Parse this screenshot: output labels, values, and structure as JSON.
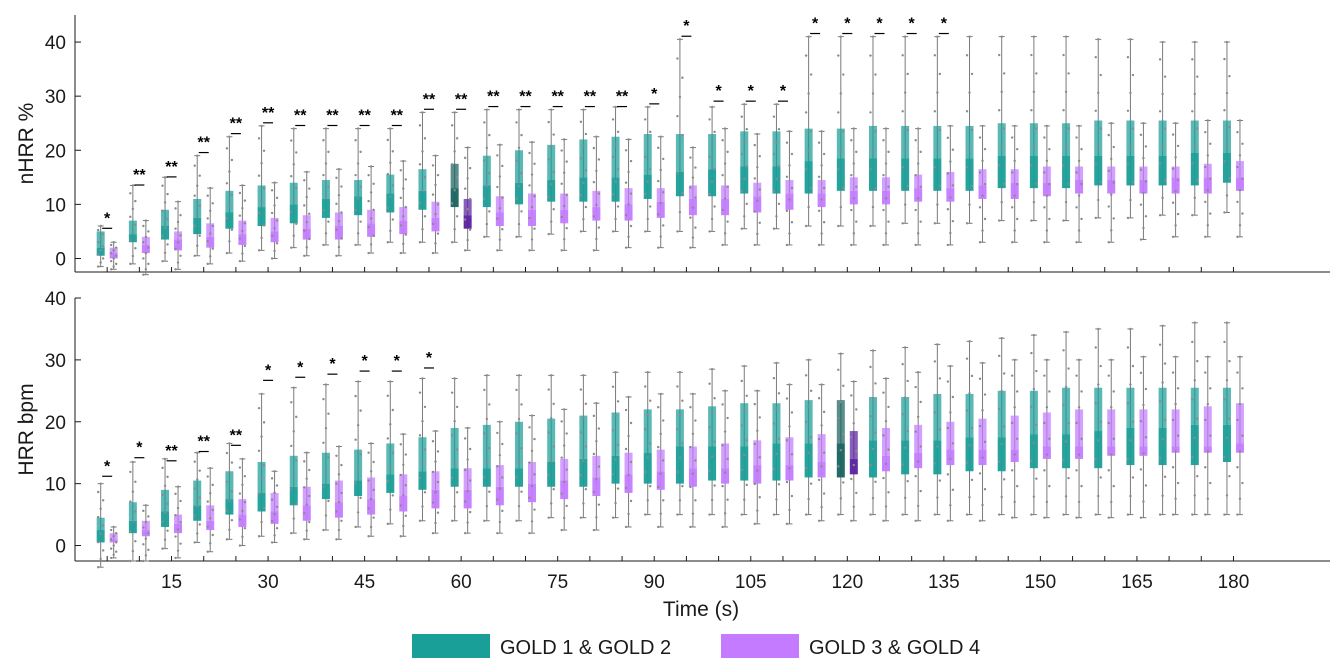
{
  "chart_data": [
    {
      "type": "box",
      "ylabel": "nHRR %",
      "ylim": [
        -2.5,
        45
      ],
      "yticks": [
        0,
        10,
        20,
        30,
        40
      ],
      "grid": false,
      "x": [
        5,
        10,
        15,
        20,
        25,
        30,
        35,
        40,
        45,
        50,
        55,
        60,
        65,
        70,
        75,
        80,
        85,
        90,
        95,
        100,
        105,
        110,
        115,
        120,
        125,
        130,
        135,
        140,
        145,
        150,
        155,
        160,
        165,
        170,
        175,
        180
      ],
      "series": [
        {
          "name": "GOLD 1 & GOLD 2",
          "color": "#1a9e98",
          "q1": [
            0.5,
            3,
            3.5,
            4.5,
            5.5,
            6,
            6.5,
            7.5,
            8,
            8.5,
            9,
            9.5,
            9.5,
            10,
            10.5,
            10.5,
            10.5,
            11,
            11.5,
            11.5,
            12,
            12,
            12,
            12.5,
            12.5,
            12.5,
            12.5,
            12.5,
            13,
            13,
            13,
            13.5,
            13.5,
            13.5,
            13.5,
            14
          ],
          "median": [
            2,
            4.5,
            6,
            7.5,
            8.5,
            9.5,
            10,
            11,
            11.5,
            12,
            12.5,
            13,
            13.5,
            14,
            14.5,
            15,
            15,
            15.5,
            16,
            16.5,
            17,
            17,
            18,
            18.5,
            18.5,
            18.5,
            18.5,
            18.5,
            19,
            19,
            19,
            19,
            19,
            19,
            19.5,
            19.5
          ],
          "q3": [
            5,
            7,
            9,
            11,
            12.5,
            13.5,
            14,
            14.5,
            14.5,
            15.5,
            16.5,
            17.5,
            19,
            20,
            21,
            22,
            22.5,
            23,
            23,
            23,
            23.5,
            23.5,
            24,
            24,
            24.5,
            24.5,
            24.5,
            24.5,
            25,
            25,
            25,
            25.5,
            25.5,
            25.5,
            25.5,
            25.5
          ],
          "whislo": [
            -1.5,
            -1,
            -0.5,
            0.5,
            1,
            1.5,
            2,
            2.5,
            2.5,
            3,
            3,
            3,
            4,
            4,
            4.5,
            5,
            5,
            5,
            5,
            5,
            5.5,
            5.5,
            6,
            6,
            6,
            6.5,
            6.5,
            6.5,
            7,
            7,
            7,
            7.5,
            7.5,
            8,
            8,
            8.5
          ],
          "whishi": [
            6,
            13.5,
            15,
            19,
            22.5,
            24.5,
            24,
            24,
            24,
            24,
            27,
            27,
            27.5,
            27.5,
            27.5,
            27.5,
            28,
            28,
            40.5,
            28,
            28.5,
            28.5,
            41,
            41,
            41,
            41,
            41,
            41,
            41,
            41,
            41,
            40.5,
            40.5,
            40,
            40,
            40
          ]
        },
        {
          "name": "GOLD 3 & GOLD 4",
          "color": "#c47bff",
          "q1": [
            0,
            1,
            1.5,
            2,
            2.5,
            3,
            3.5,
            3.5,
            4,
            4.5,
            5,
            5.5,
            6,
            6,
            6.5,
            7,
            7,
            7.5,
            8,
            8,
            8.5,
            9,
            9.5,
            10,
            10,
            10.5,
            10.5,
            11,
            11,
            11.5,
            12,
            12,
            12,
            12,
            12,
            12.5
          ],
          "median": [
            1,
            2.5,
            3.5,
            4,
            4.5,
            5,
            5.5,
            6,
            6.5,
            7,
            7.5,
            8,
            8.5,
            9,
            9,
            9.5,
            10,
            10.5,
            11,
            11,
            11.5,
            12,
            12,
            12.5,
            12.5,
            13,
            13,
            13.5,
            14,
            14,
            14.5,
            14.5,
            14.5,
            15,
            15,
            15
          ],
          "q3": [
            2,
            4,
            5,
            6.5,
            7,
            7.5,
            8,
            8.5,
            9,
            9.5,
            10.5,
            11,
            11.5,
            12,
            12,
            12.5,
            13,
            13,
            13.5,
            13.5,
            14,
            14.5,
            14.5,
            15,
            15,
            15.5,
            16,
            16.5,
            16.5,
            17,
            17,
            17,
            17,
            17,
            17.5,
            18
          ],
          "whislo": [
            -2,
            -3,
            -2,
            -1,
            -0.5,
            0,
            0.5,
            0.5,
            1,
            1,
            1,
            1.5,
            1.5,
            1.5,
            1.5,
            1.5,
            2,
            2,
            2,
            2.5,
            2.5,
            2.5,
            2.5,
            2.5,
            2.5,
            2.5,
            2.5,
            3,
            3,
            3,
            3,
            3,
            3.5,
            4,
            4,
            4
          ],
          "whishi": [
            3,
            7,
            10.5,
            13,
            13.5,
            14,
            16,
            16.5,
            17,
            18,
            19,
            20.5,
            21,
            21.5,
            22,
            22.5,
            22,
            22.5,
            20.5,
            24,
            23,
            23.5,
            23.5,
            24,
            24,
            24,
            24.5,
            24.5,
            24.5,
            24.5,
            24.5,
            25,
            25,
            25,
            25.5,
            25.5
          ]
        }
      ],
      "highlight_x": 60,
      "annotations": [
        {
          "x": 5,
          "y": 6.5,
          "text": "*"
        },
        {
          "x": 10,
          "y": 14.5,
          "text": "**"
        },
        {
          "x": 15,
          "y": 16,
          "text": "**"
        },
        {
          "x": 20,
          "y": 20.5,
          "text": "**"
        },
        {
          "x": 25,
          "y": 24,
          "text": "**"
        },
        {
          "x": 30,
          "y": 26,
          "text": "**"
        },
        {
          "x": 35,
          "y": 25.5,
          "text": "**"
        },
        {
          "x": 40,
          "y": 25.5,
          "text": "**"
        },
        {
          "x": 45,
          "y": 25.5,
          "text": "**"
        },
        {
          "x": 50,
          "y": 25.5,
          "text": "**"
        },
        {
          "x": 55,
          "y": 28.5,
          "text": "**"
        },
        {
          "x": 60,
          "y": 28.5,
          "text": "**"
        },
        {
          "x": 65,
          "y": 29,
          "text": "**"
        },
        {
          "x": 70,
          "y": 29,
          "text": "**"
        },
        {
          "x": 75,
          "y": 29,
          "text": "**"
        },
        {
          "x": 80,
          "y": 29,
          "text": "**"
        },
        {
          "x": 85,
          "y": 29,
          "text": "**"
        },
        {
          "x": 90,
          "y": 29.5,
          "text": "*"
        },
        {
          "x": 95,
          "y": 42,
          "text": "*"
        },
        {
          "x": 100,
          "y": 30,
          "text": "*"
        },
        {
          "x": 105,
          "y": 30,
          "text": "*"
        },
        {
          "x": 110,
          "y": 30,
          "text": "*"
        },
        {
          "x": 115,
          "y": 42.5,
          "text": "*"
        },
        {
          "x": 120,
          "y": 42.5,
          "text": "*"
        },
        {
          "x": 125,
          "y": 42.5,
          "text": "*"
        },
        {
          "x": 130,
          "y": 42.5,
          "text": "*"
        },
        {
          "x": 135,
          "y": 42.5,
          "text": "*"
        }
      ]
    },
    {
      "type": "box",
      "ylabel": "HRR bpm",
      "xlabel": "Time (s)",
      "ylim": [
        -2.5,
        40
      ],
      "yticks": [
        0,
        10,
        20,
        30,
        40
      ],
      "xticks": [
        15,
        30,
        45,
        60,
        75,
        90,
        105,
        120,
        135,
        150,
        165,
        180
      ],
      "grid": false,
      "x": [
        5,
        10,
        15,
        20,
        25,
        30,
        35,
        40,
        45,
        50,
        55,
        60,
        65,
        70,
        75,
        80,
        85,
        90,
        95,
        100,
        105,
        110,
        115,
        120,
        125,
        130,
        135,
        140,
        145,
        150,
        155,
        160,
        165,
        170,
        175,
        180
      ],
      "series": [
        {
          "name": "GOLD 1 & GOLD 2",
          "color": "#1a9e98",
          "q1": [
            0.5,
            2,
            3,
            4,
            5,
            5.5,
            6.5,
            7.5,
            8,
            8.5,
            9,
            9.5,
            9.5,
            9.5,
            9.5,
            9.5,
            10,
            10,
            10,
            10.5,
            10.5,
            10.5,
            11,
            11,
            11,
            11.5,
            11.5,
            12,
            12,
            12.5,
            12.5,
            12.5,
            13,
            13,
            13,
            13.5
          ],
          "median": [
            2.5,
            4,
            5.5,
            6.5,
            7.5,
            8.5,
            9.5,
            10,
            10.5,
            11.5,
            12,
            12.5,
            12.5,
            12.5,
            13.5,
            14,
            14.5,
            15,
            16,
            16,
            16,
            16.5,
            16.5,
            16.5,
            17,
            17,
            17,
            17.5,
            17.5,
            18,
            18,
            18.5,
            19,
            19,
            19.5,
            19.5
          ],
          "q3": [
            4.5,
            7,
            9,
            10.5,
            12,
            13.5,
            14.5,
            15,
            15.5,
            16.5,
            17.5,
            19,
            19.5,
            20,
            20.5,
            21,
            21.5,
            22,
            22,
            22.5,
            23,
            23,
            23.5,
            23.5,
            24,
            24,
            24.5,
            24.5,
            25,
            25,
            25.5,
            25.5,
            25.5,
            25.5,
            25.5,
            25.5
          ],
          "whislo": [
            -3.5,
            -2.5,
            -0.5,
            0.5,
            1,
            1.5,
            2,
            2.5,
            3,
            3.5,
            4,
            4,
            4,
            4,
            4.5,
            4.5,
            4.5,
            5,
            5,
            5,
            5,
            5,
            5,
            5,
            5,
            5,
            5,
            5,
            5,
            5,
            5,
            5,
            5,
            5,
            5,
            5
          ],
          "whishi": [
            10,
            13.5,
            14,
            15,
            16.5,
            24.5,
            25.5,
            26,
            26.5,
            26.5,
            27,
            27,
            27.5,
            27.5,
            27.5,
            27.5,
            28,
            28,
            28,
            28.5,
            29,
            29.5,
            30,
            31,
            31.5,
            32,
            32.5,
            33,
            33.5,
            34,
            34.5,
            35,
            35,
            35.5,
            36,
            36
          ]
        },
        {
          "name": "GOLD 3 & GOLD 4",
          "color": "#c47bff",
          "q1": [
            0.5,
            1.5,
            2,
            2.5,
            3,
            3.5,
            4,
            4.5,
            5,
            5.5,
            6,
            6,
            6.5,
            7,
            7.5,
            8,
            8.5,
            9,
            9.5,
            10,
            10,
            10.5,
            11,
            11.5,
            12,
            12.5,
            13,
            13,
            13.5,
            14,
            14,
            14.5,
            14.5,
            15,
            15,
            15
          ],
          "median": [
            1,
            2.5,
            3.5,
            4,
            5,
            5.5,
            6.5,
            7,
            7.5,
            8,
            9,
            9,
            9.5,
            10,
            10.5,
            11,
            11.5,
            12,
            12.5,
            12.5,
            13,
            13,
            13.5,
            14,
            14.5,
            15,
            15.5,
            15.5,
            15.5,
            16,
            16,
            16,
            16,
            16,
            16,
            16.5
          ],
          "q3": [
            2,
            4,
            5,
            6.5,
            7.5,
            8.5,
            9.5,
            10.5,
            11,
            11.5,
            12,
            12.5,
            13,
            13.5,
            14,
            14.5,
            15,
            15.5,
            16,
            16.5,
            17,
            17.5,
            18,
            18.5,
            19,
            19.5,
            20,
            20.5,
            21,
            21.5,
            22,
            22,
            22,
            22,
            22.5,
            23
          ],
          "whislo": [
            -2,
            -2.5,
            -2,
            -1,
            0,
            0.5,
            1,
            1,
            1.5,
            1.5,
            2,
            2,
            2,
            2,
            2.5,
            2.5,
            3,
            3,
            3,
            3,
            3.5,
            3.5,
            4,
            4,
            4,
            4,
            4,
            4,
            4.5,
            4.5,
            4.5,
            4.5,
            4.5,
            5,
            5,
            5
          ],
          "whishi": [
            3,
            6.5,
            9.5,
            12.5,
            14,
            12,
            15,
            16,
            16.5,
            18,
            18.5,
            19,
            20,
            21,
            22,
            23,
            24,
            24.5,
            24.5,
            25,
            25,
            26,
            26,
            26.5,
            27,
            28,
            29,
            29.5,
            30,
            30,
            30,
            30,
            30.5,
            30.5,
            30.5,
            30.5
          ]
        }
      ],
      "highlight_x": 120,
      "annotations": [
        {
          "x": 5,
          "y": 12,
          "text": "*"
        },
        {
          "x": 10,
          "y": 15,
          "text": "*"
        },
        {
          "x": 15,
          "y": 14.5,
          "text": "**"
        },
        {
          "x": 20,
          "y": 16,
          "text": "**"
        },
        {
          "x": 25,
          "y": 17,
          "text": "**"
        },
        {
          "x": 30,
          "y": 27.5,
          "text": "*"
        },
        {
          "x": 35,
          "y": 28,
          "text": "*"
        },
        {
          "x": 40,
          "y": 28.5,
          "text": "*"
        },
        {
          "x": 45,
          "y": 29,
          "text": "*"
        },
        {
          "x": 50,
          "y": 29,
          "text": "*"
        },
        {
          "x": 55,
          "y": 29.5,
          "text": "*"
        }
      ]
    }
  ],
  "highlight_colors": {
    "GOLD 1 & GOLD 2": "#17635f",
    "GOLD 3 & GOLD 4": "#5b1fa0"
  },
  "legend": {
    "placement": "bottom-center",
    "items": [
      {
        "label": "GOLD 1 & GOLD 2",
        "color": "#1a9e98"
      },
      {
        "label": "GOLD 3 & GOLD 4",
        "color": "#c47bff"
      }
    ]
  }
}
